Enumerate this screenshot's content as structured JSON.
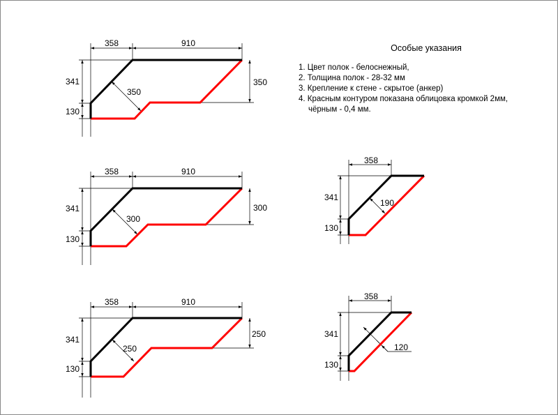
{
  "notes": {
    "title": "Особые указания",
    "items": [
      "1. Цвет полок - белоснежный,",
      "2. Толщина полок - 28-32 мм",
      "3. Крепление к стене - скрытое (анкер)",
      "4. Красным контуром показана облицовка кромкой 2мм,",
      "чёрным - 0,4 мм."
    ]
  },
  "colors": {
    "edge_2mm": "#ff0000",
    "edge_04mm": "#000000"
  },
  "shelves": [
    {
      "width_left": "358",
      "width_right": "910",
      "height_top": "341",
      "height_bottom": "130",
      "depth_right": "350",
      "depth_diag": "350"
    },
    {
      "width_left": "358",
      "width_right": "910",
      "height_top": "341",
      "height_bottom": "130",
      "depth_right": "300",
      "depth_diag": "300"
    },
    {
      "width_left": "358",
      "width_right": "910",
      "height_top": "341",
      "height_bottom": "130",
      "depth_right": "250",
      "depth_diag": "250"
    },
    {
      "width_left": "358",
      "height_top": "341",
      "height_bottom": "130",
      "depth_diag": "190"
    },
    {
      "width_left": "358",
      "height_top": "341",
      "height_bottom": "130",
      "depth_diag": "120"
    }
  ]
}
